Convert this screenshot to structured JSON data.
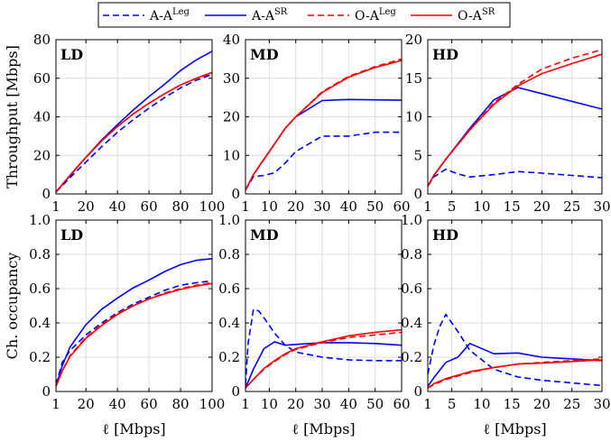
{
  "legend": [
    {
      "name": "A-A",
      "sup": "Leg",
      "color": "#0000ff",
      "dash": true
    },
    {
      "name": "A-A",
      "sup": "SR",
      "color": "#0000ff",
      "dash": false
    },
    {
      "name": "O-A",
      "sup": "Leg",
      "color": "#ff0000",
      "dash": true
    },
    {
      "name": "O-A",
      "sup": "SR",
      "color": "#ff0000",
      "dash": false
    }
  ],
  "chart_data": [
    {
      "type": "line",
      "title": "LD",
      "row": 0,
      "col": 0,
      "ylabel": "Throughput [Mbps]",
      "xlabel": "",
      "xlim": [
        1,
        100
      ],
      "ylim": [
        0,
        80
      ],
      "xticks": [
        1,
        20,
        40,
        60,
        80,
        100
      ],
      "yticks": [
        0,
        20,
        40,
        60,
        80
      ],
      "series": [
        {
          "x": [
            1,
            10,
            20,
            30,
            40,
            50,
            60,
            70,
            80,
            90,
            100
          ],
          "y": [
            1,
            8.5,
            16.5,
            24.5,
            32,
            38.5,
            44.5,
            50,
            55,
            59,
            62
          ]
        },
        {
          "x": [
            1,
            10,
            20,
            30,
            40,
            50,
            60,
            70,
            80,
            90,
            100
          ],
          "y": [
            1,
            9.5,
            19,
            28,
            36,
            43.5,
            50.5,
            57,
            64,
            69.5,
            74
          ]
        },
        {
          "x": [
            1,
            10,
            20,
            30,
            40,
            50,
            60,
            70,
            80,
            90,
            100
          ],
          "y": [
            1,
            9.8,
            19,
            27.5,
            35,
            41.5,
            47,
            52,
            56.5,
            60,
            62.5
          ]
        },
        {
          "x": [
            1,
            10,
            20,
            30,
            40,
            50,
            60,
            70,
            80,
            90,
            100
          ],
          "y": [
            1,
            9.8,
            19,
            27.5,
            35,
            41.5,
            47,
            52,
            56.5,
            60,
            63
          ]
        }
      ]
    },
    {
      "type": "line",
      "title": "MD",
      "row": 0,
      "col": 1,
      "ylabel": "",
      "xlabel": "",
      "xlim": [
        1,
        60
      ],
      "ylim": [
        0,
        40
      ],
      "xticks": [
        1,
        10,
        20,
        30,
        40,
        50,
        60
      ],
      "yticks": [
        0,
        10,
        20,
        30,
        40
      ],
      "series": [
        {
          "x": [
            1,
            4,
            8,
            12,
            16,
            20,
            25,
            30,
            40,
            50,
            60
          ],
          "y": [
            1,
            4.5,
            4.8,
            5.5,
            8,
            11,
            13,
            15,
            15,
            16,
            16
          ]
        },
        {
          "x": [
            1,
            4,
            8,
            12,
            16,
            20,
            30,
            40,
            50,
            60
          ],
          "y": [
            1,
            5,
            9,
            13,
            17,
            20,
            24.2,
            24.5,
            24.4,
            24.3
          ]
        },
        {
          "x": [
            1,
            4,
            8,
            12,
            16,
            20,
            30,
            40,
            50,
            60
          ],
          "y": [
            1,
            5,
            9,
            13,
            17,
            20,
            26.5,
            30.5,
            33,
            35
          ]
        },
        {
          "x": [
            1,
            4,
            8,
            12,
            16,
            20,
            30,
            40,
            50,
            60
          ],
          "y": [
            1,
            5,
            9,
            13,
            17,
            20,
            26.3,
            30.3,
            32.8,
            34.6
          ]
        }
      ]
    },
    {
      "type": "line",
      "title": "HD",
      "row": 0,
      "col": 2,
      "ylabel": "",
      "xlabel": "",
      "xlim": [
        1,
        30
      ],
      "ylim": [
        0,
        20
      ],
      "xticks": [
        1,
        5,
        10,
        15,
        20,
        25,
        30
      ],
      "yticks": [
        0,
        5,
        10,
        15,
        20
      ],
      "series": [
        {
          "x": [
            1,
            2,
            4,
            6,
            8,
            12,
            16,
            20,
            25,
            30
          ],
          "y": [
            1,
            2.2,
            3.2,
            2.6,
            2.2,
            2.5,
            2.9,
            2.7,
            2.4,
            2.1
          ]
        },
        {
          "x": [
            1,
            2,
            4,
            8,
            12,
            16,
            20,
            25,
            30
          ],
          "y": [
            1,
            2.4,
            4.5,
            8.5,
            12.2,
            13.8,
            13,
            12,
            11
          ]
        },
        {
          "x": [
            1,
            2,
            4,
            8,
            12,
            16,
            20,
            25,
            30
          ],
          "y": [
            1,
            2.4,
            4.5,
            8.3,
            11.8,
            14.2,
            16.2,
            17.6,
            18.7
          ]
        },
        {
          "x": [
            1,
            2,
            4,
            8,
            12,
            16,
            20,
            25,
            30
          ],
          "y": [
            1,
            2.4,
            4.5,
            8.3,
            11.6,
            14,
            15.6,
            16.9,
            18.1
          ]
        }
      ]
    },
    {
      "type": "line",
      "title": "LD",
      "row": 1,
      "col": 0,
      "ylabel": "Ch. occupancy",
      "xlabel": "ℓ [Mbps]",
      "xlim": [
        1,
        100
      ],
      "ylim": [
        0,
        1
      ],
      "xticks": [
        1,
        20,
        40,
        60,
        80,
        100
      ],
      "yticks": [
        0,
        0.2,
        0.4,
        0.6,
        0.8,
        1.0
      ],
      "ytick_labels": [
        "0",
        "0.2",
        "0.4",
        "0.6",
        "0.8",
        "1.0"
      ],
      "series": [
        {
          "x": [
            1,
            5,
            10,
            20,
            30,
            40,
            50,
            60,
            70,
            80,
            90,
            100
          ],
          "y": [
            0.04,
            0.17,
            0.24,
            0.33,
            0.4,
            0.46,
            0.51,
            0.55,
            0.59,
            0.62,
            0.635,
            0.645
          ]
        },
        {
          "x": [
            1,
            5,
            10,
            20,
            30,
            40,
            50,
            60,
            70,
            80,
            90,
            100
          ],
          "y": [
            0.03,
            0.15,
            0.26,
            0.39,
            0.48,
            0.545,
            0.605,
            0.65,
            0.7,
            0.74,
            0.765,
            0.775
          ]
        },
        {
          "x": [
            1,
            5,
            10,
            20,
            30,
            40,
            50,
            60,
            70,
            80,
            90,
            100
          ],
          "y": [
            0.03,
            0.12,
            0.21,
            0.315,
            0.39,
            0.455,
            0.5,
            0.54,
            0.575,
            0.6,
            0.62,
            0.635
          ]
        },
        {
          "x": [
            1,
            5,
            10,
            20,
            30,
            40,
            50,
            60,
            70,
            80,
            90,
            100
          ],
          "y": [
            0.03,
            0.12,
            0.205,
            0.31,
            0.385,
            0.45,
            0.5,
            0.54,
            0.57,
            0.595,
            0.615,
            0.63
          ]
        }
      ]
    },
    {
      "type": "line",
      "title": "MD",
      "row": 1,
      "col": 1,
      "ylabel": "",
      "xlabel": "ℓ [Mbps]",
      "xlim": [
        1,
        60
      ],
      "ylim": [
        0,
        1
      ],
      "xticks": [
        1,
        10,
        20,
        30,
        40,
        50,
        60
      ],
      "yticks": [
        0,
        0.2,
        0.4,
        0.6,
        0.8,
        1.0
      ],
      "ytick_labels": [
        "0",
        "0.2",
        "0.4",
        "0.6",
        "0.8",
        "1.0"
      ],
      "series": [
        {
          "x": [
            1,
            2,
            4,
            6,
            8,
            12,
            16,
            20,
            30,
            40,
            50,
            60
          ],
          "y": [
            0.04,
            0.28,
            0.48,
            0.47,
            0.43,
            0.34,
            0.27,
            0.23,
            0.2,
            0.185,
            0.18,
            0.18
          ]
        },
        {
          "x": [
            1,
            4,
            8,
            12,
            16,
            20,
            30,
            40,
            50,
            60
          ],
          "y": [
            0.02,
            0.13,
            0.25,
            0.29,
            0.27,
            0.275,
            0.285,
            0.285,
            0.28,
            0.27
          ]
        },
        {
          "x": [
            1,
            4,
            8,
            12,
            16,
            20,
            30,
            40,
            50,
            60
          ],
          "y": [
            0.02,
            0.07,
            0.13,
            0.175,
            0.215,
            0.245,
            0.285,
            0.315,
            0.33,
            0.345
          ]
        },
        {
          "x": [
            1,
            4,
            8,
            12,
            16,
            20,
            30,
            40,
            50,
            60
          ],
          "y": [
            0.02,
            0.07,
            0.135,
            0.18,
            0.22,
            0.25,
            0.29,
            0.325,
            0.345,
            0.36
          ]
        }
      ]
    },
    {
      "type": "line",
      "title": "HD",
      "row": 1,
      "col": 2,
      "ylabel": "",
      "xlabel": "ℓ [Mbps]",
      "xlim": [
        1,
        30
      ],
      "ylim": [
        0,
        1
      ],
      "xticks": [
        1,
        5,
        10,
        15,
        20,
        25,
        30
      ],
      "yticks": [
        0,
        0.2,
        0.4,
        0.6,
        0.8,
        1.0
      ],
      "ytick_labels": [
        "0",
        "0.2",
        "0.4",
        "0.6",
        "0.8",
        "1.0"
      ],
      "series": [
        {
          "x": [
            1,
            2,
            3,
            4,
            6,
            8,
            12,
            16,
            20,
            25,
            30
          ],
          "y": [
            0.1,
            0.27,
            0.38,
            0.45,
            0.35,
            0.24,
            0.13,
            0.085,
            0.065,
            0.05,
            0.035
          ]
        },
        {
          "x": [
            1,
            2,
            4,
            6,
            8,
            12,
            16,
            20,
            25,
            30
          ],
          "y": [
            0.03,
            0.08,
            0.17,
            0.2,
            0.28,
            0.22,
            0.225,
            0.2,
            0.19,
            0.18
          ]
        },
        {
          "x": [
            1,
            2,
            4,
            6,
            8,
            12,
            16,
            20,
            25,
            30
          ],
          "y": [
            0.02,
            0.04,
            0.07,
            0.09,
            0.11,
            0.14,
            0.16,
            0.17,
            0.18,
            0.19
          ]
        },
        {
          "x": [
            1,
            2,
            4,
            6,
            8,
            12,
            16,
            20,
            25,
            30
          ],
          "y": [
            0.02,
            0.045,
            0.075,
            0.095,
            0.115,
            0.14,
            0.16,
            0.165,
            0.175,
            0.185
          ]
        }
      ]
    }
  ]
}
